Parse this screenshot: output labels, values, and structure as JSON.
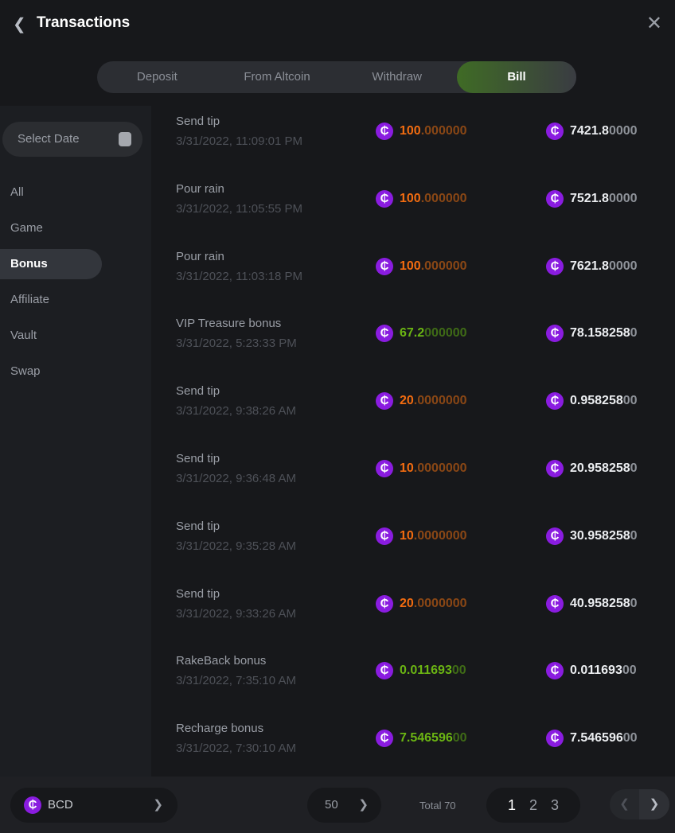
{
  "header": {
    "title": "Transactions",
    "back_icon": "chevron-left-icon",
    "close_icon": "close-icon"
  },
  "tabs": [
    {
      "label": "Deposit"
    },
    {
      "label": "From Altcoin"
    },
    {
      "label": "Withdraw"
    },
    {
      "label": "Bill",
      "active": true
    }
  ],
  "sidebar": {
    "date_placeholder": "Select Date",
    "categories": [
      {
        "label": "All"
      },
      {
        "label": "Game"
      },
      {
        "label": "Bonus",
        "active": true
      },
      {
        "label": "Affiliate"
      },
      {
        "label": "Vault"
      },
      {
        "label": "Swap"
      }
    ]
  },
  "colors": {
    "negative": "#f36c10",
    "positive": "#6bb513",
    "coin": "#8a1ce0",
    "active_tab": "#3f6b25"
  },
  "rows": [
    {
      "name": "Send tip",
      "time": "3/31/2022, 11:09:01 PM",
      "amount_main": "100",
      "amount_dim": ".000000",
      "type": "orange",
      "balance_main": "7421.8",
      "balance_dim": "0000"
    },
    {
      "name": "Pour rain",
      "time": "3/31/2022, 11:05:55 PM",
      "amount_main": "100",
      "amount_dim": ".000000",
      "type": "orange",
      "balance_main": "7521.8",
      "balance_dim": "0000"
    },
    {
      "name": "Pour rain",
      "time": "3/31/2022, 11:03:18 PM",
      "amount_main": "100",
      "amount_dim": ".000000",
      "type": "orange",
      "balance_main": "7621.8",
      "balance_dim": "0000"
    },
    {
      "name": "VIP Treasure bonus",
      "time": "3/31/2022, 5:23:33 PM",
      "amount_main": "67.2",
      "amount_dim": "000000",
      "type": "green",
      "balance_main": "78.158258",
      "balance_dim": "0"
    },
    {
      "name": "Send tip",
      "time": "3/31/2022, 9:38:26 AM",
      "amount_main": "20",
      "amount_dim": ".0000000",
      "type": "orange",
      "balance_main": "0.958258",
      "balance_dim": "00"
    },
    {
      "name": "Send tip",
      "time": "3/31/2022, 9:36:48 AM",
      "amount_main": "10",
      "amount_dim": ".0000000",
      "type": "orange",
      "balance_main": "20.958258",
      "balance_dim": "0"
    },
    {
      "name": "Send tip",
      "time": "3/31/2022, 9:35:28 AM",
      "amount_main": "10",
      "amount_dim": ".0000000",
      "type": "orange",
      "balance_main": "30.958258",
      "balance_dim": "0"
    },
    {
      "name": "Send tip",
      "time": "3/31/2022, 9:33:26 AM",
      "amount_main": "20",
      "amount_dim": ".0000000",
      "type": "orange",
      "balance_main": "40.958258",
      "balance_dim": "0"
    },
    {
      "name": "RakeBack bonus",
      "time": "3/31/2022, 7:35:10 AM",
      "amount_main": "0.011693",
      "amount_dim": "00",
      "type": "green",
      "balance_main": "0.011693",
      "balance_dim": "00"
    },
    {
      "name": "Recharge bonus",
      "time": "3/31/2022, 7:30:10 AM",
      "amount_main": "7.546596",
      "amount_dim": "00",
      "type": "green",
      "balance_main": "7.546596",
      "balance_dim": "00"
    }
  ],
  "footer": {
    "currency": "BCD",
    "page_size": "50",
    "total": "Total 70",
    "pages": [
      "1",
      "2",
      "3"
    ],
    "current_page": "1"
  }
}
